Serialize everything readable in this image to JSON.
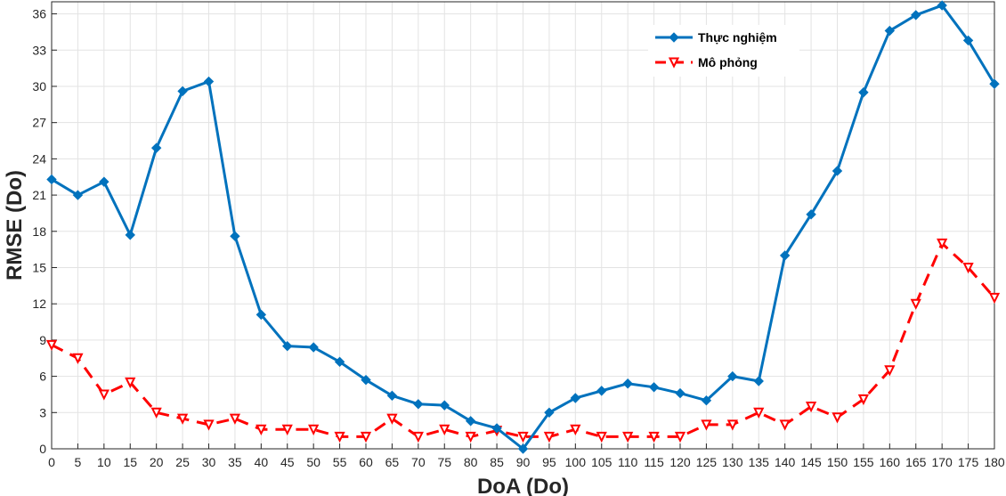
{
  "chart_data": {
    "type": "line",
    "xlabel": "DoA (Do)",
    "ylabel": "RMSE (Do)",
    "xlim": [
      0,
      180
    ],
    "ylim": [
      0,
      37
    ],
    "x_ticks": [
      0,
      5,
      10,
      15,
      20,
      25,
      30,
      35,
      40,
      45,
      50,
      55,
      60,
      65,
      70,
      75,
      80,
      85,
      90,
      95,
      100,
      105,
      110,
      115,
      120,
      125,
      130,
      135,
      140,
      145,
      150,
      155,
      160,
      165,
      170,
      175,
      180
    ],
    "y_ticks": [
      0,
      3,
      6,
      9,
      12,
      15,
      18,
      21,
      24,
      27,
      30,
      33,
      36
    ],
    "grid": true,
    "legend_position": "top-right",
    "x": [
      0,
      5,
      10,
      15,
      20,
      25,
      30,
      35,
      40,
      45,
      50,
      55,
      60,
      65,
      70,
      75,
      80,
      85,
      90,
      95,
      100,
      105,
      110,
      115,
      120,
      125,
      130,
      135,
      140,
      145,
      150,
      155,
      160,
      165,
      170,
      175,
      180
    ],
    "series": [
      {
        "name": "Thực nghiệm",
        "color": "#0072BD",
        "line_style": "solid",
        "marker": "diamond",
        "values": [
          22.3,
          21.0,
          22.1,
          17.7,
          24.9,
          29.6,
          30.4,
          17.6,
          11.1,
          8.5,
          8.4,
          7.2,
          5.7,
          4.4,
          3.7,
          3.6,
          2.3,
          1.7,
          0.0,
          3.0,
          4.2,
          4.8,
          5.4,
          5.1,
          4.6,
          4.0,
          6.0,
          5.6,
          16.0,
          19.4,
          23.0,
          29.5,
          34.6,
          35.9,
          36.7,
          33.8,
          30.2
        ]
      },
      {
        "name": "Mô phỏng",
        "color": "#FF0000",
        "line_style": "dashed",
        "marker": "triangle-down",
        "values": [
          8.6,
          7.5,
          4.5,
          5.5,
          3.0,
          2.5,
          2.0,
          2.5,
          1.6,
          1.6,
          1.6,
          1.0,
          1.0,
          2.5,
          1.0,
          1.6,
          1.0,
          1.5,
          1.0,
          1.0,
          1.6,
          1.0,
          1.0,
          1.0,
          1.0,
          2.0,
          2.0,
          3.0,
          2.0,
          3.5,
          2.6,
          4.1,
          6.5,
          12.0,
          17.0,
          15.0,
          12.5
        ]
      }
    ]
  }
}
